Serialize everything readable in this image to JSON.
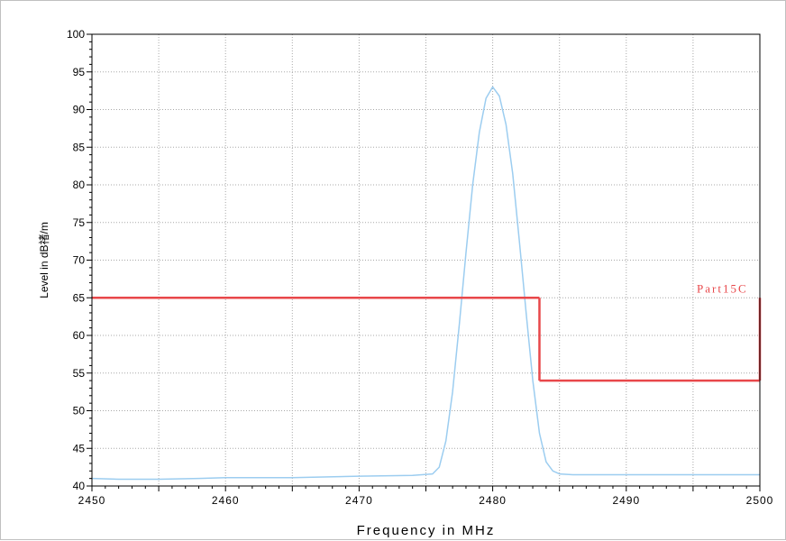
{
  "chart_data": {
    "type": "line",
    "xlabel": "Frequency in MHz",
    "ylabel": "Level in dB禇/m",
    "xlim": [
      2450,
      2500
    ],
    "ylim": [
      40,
      100
    ],
    "x_ticks": [
      2450,
      2460,
      2470,
      2480,
      2490,
      2500
    ],
    "y_ticks": [
      40,
      45,
      50,
      55,
      60,
      65,
      70,
      75,
      80,
      85,
      90,
      95,
      100
    ],
    "grid": true,
    "colors": {
      "trace": "#9ccdf0",
      "limit": "#e8474a",
      "grid": "#a8a8a8"
    },
    "series": [
      {
        "name": "",
        "x": [
          2450,
          2452,
          2455,
          2458,
          2460,
          2465,
          2470,
          2474,
          2475.5,
          2476,
          2476.5,
          2477,
          2477.5,
          2478,
          2478.5,
          2479,
          2479.5,
          2480,
          2480.5,
          2481,
          2481.5,
          2482,
          2482.5,
          2483,
          2483.5,
          2484,
          2484.5,
          2485,
          2486,
          2490,
          2495,
          2500
        ],
        "y": [
          41.0,
          40.9,
          40.9,
          41.0,
          41.1,
          41.1,
          41.3,
          41.4,
          41.6,
          42.5,
          46.0,
          52.5,
          61.5,
          71.0,
          80.0,
          87.0,
          91.5,
          93.0,
          91.8,
          88.0,
          81.5,
          72.5,
          63.0,
          54.0,
          47.0,
          43.2,
          42.0,
          41.6,
          41.5,
          41.5,
          41.5,
          41.5
        ]
      }
    ],
    "limit_line": {
      "name": "Part15C",
      "segments": [
        {
          "x": [
            2450,
            2483.5
          ],
          "y": [
            65,
            65
          ]
        },
        {
          "x": [
            2483.5,
            2483.5
          ],
          "y": [
            65,
            54
          ]
        },
        {
          "x": [
            2483.5,
            2500
          ],
          "y": [
            54,
            54
          ]
        },
        {
          "x": [
            2500,
            2500
          ],
          "y": [
            54,
            65
          ]
        }
      ]
    }
  }
}
